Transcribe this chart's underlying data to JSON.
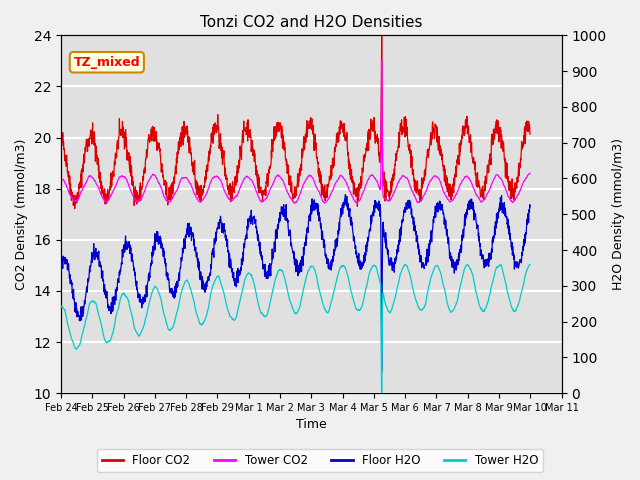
{
  "title": "Tonzi CO2 and H2O Densities",
  "xlabel": "Time",
  "ylabel_left": "CO2 Density (mmol/m3)",
  "ylabel_right": "H2O Density (mmol/m3)",
  "annotation": "TZ_mixed",
  "ylim_left": [
    10,
    24
  ],
  "ylim_right": [
    0,
    1000
  ],
  "yticks_left": [
    10,
    12,
    14,
    16,
    18,
    20,
    22,
    24
  ],
  "yticks_right": [
    0,
    100,
    200,
    300,
    400,
    500,
    600,
    700,
    800,
    900,
    1000
  ],
  "legend": [
    "Floor CO2",
    "Tower CO2",
    "Floor H2O",
    "Tower H2O"
  ],
  "colors": {
    "floor_co2": "#dd0000",
    "tower_co2": "#ff00ff",
    "floor_h2o": "#0000cc",
    "tower_h2o": "#00cccc"
  },
  "fig_facecolor": "#f0f0f0",
  "axes_facecolor": "#e0e0e0",
  "n_points": 1680,
  "spike_day": 10.25,
  "total_days": 15
}
